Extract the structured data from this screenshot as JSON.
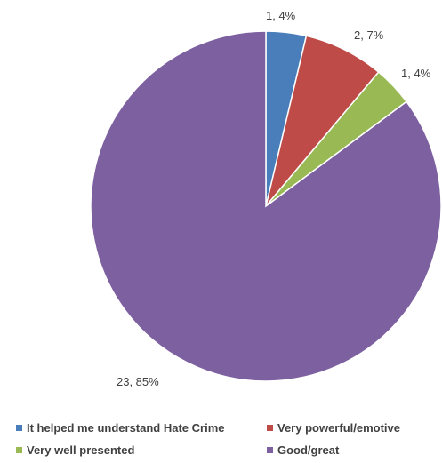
{
  "chart_data": {
    "type": "pie",
    "title": "",
    "slices": [
      {
        "label": "It helped me understand Hate Crime",
        "value": 1,
        "percent": "4%",
        "data_label": "1, 4%",
        "color": "#4a7ebb"
      },
      {
        "label": "Very powerful/emotive",
        "value": 2,
        "percent": "7%",
        "data_label": "2, 7%",
        "color": "#be4b48"
      },
      {
        "label": "Very well presented",
        "value": 1,
        "percent": "4%",
        "data_label": "1, 4%",
        "color": "#98b954"
      },
      {
        "label": "Good/great",
        "value": 23,
        "percent": "85%",
        "data_label": "23, 85%",
        "color": "#7d60a0"
      }
    ],
    "legend_position": "bottom"
  }
}
